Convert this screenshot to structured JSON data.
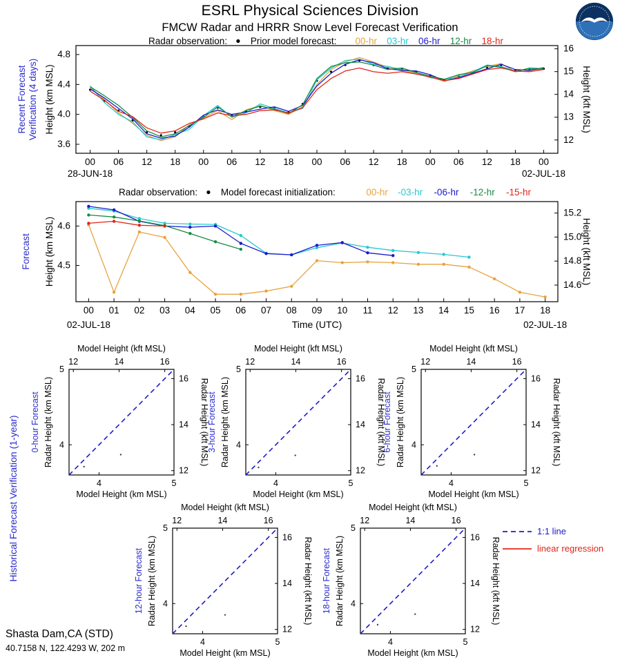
{
  "page": {
    "title": "ESRL Physical Sciences Division",
    "subtitle": "FMCW Radar and HRRR Snow Level Forecast Verification",
    "station": {
      "name": "Shasta Dam,CA (STD)",
      "coords": "40.7158 N, 122.4293 W, 202 m"
    },
    "logo": "noaa-logo"
  },
  "colors": {
    "radar": "#000000",
    "hr00": "#E8A33D",
    "hr03": "#25C8D0",
    "hr06": "#1A1ACD",
    "hr12": "#178A43",
    "hr15": "#E02418",
    "hr18": "#E02418",
    "section_label": "#2B2BD0",
    "one_to_one": "#1A1ACD",
    "regression": "#E02418"
  },
  "chart_data": [
    {
      "type": "line",
      "name": "recent_verification",
      "section_label_line1": "Recent Forecast",
      "section_label_line2": "Verification (4 days)",
      "legend": {
        "radar_label": "Radar observation:",
        "model_label": "Prior model forecast:",
        "items": [
          {
            "label": "00-hr",
            "color": "hr00"
          },
          {
            "label": "03-hr",
            "color": "hr03"
          },
          {
            "label": "06-hr",
            "color": "hr06"
          },
          {
            "label": "12-hr",
            "color": "hr12"
          },
          {
            "label": "18-hr",
            "color": "hr18"
          }
        ]
      },
      "ylabel_left": "Height (km MSL)",
      "ylabel_right": "Height (kft MSL)",
      "date_left": "28-JUN-18",
      "date_right": "02-JUL-18",
      "xlim": [
        -3,
        99
      ],
      "ylim": [
        3.48,
        4.92
      ],
      "y_left_ticks": [
        "3.6",
        "4.0",
        "4.4",
        "4.8"
      ],
      "y_right_ticks": [
        "12",
        "13",
        "14",
        "15",
        "16"
      ],
      "x_ticks": {
        "positions": [
          0,
          6,
          12,
          18,
          24,
          30,
          36,
          42,
          48,
          54,
          60,
          66,
          72,
          78,
          84,
          90,
          96
        ],
        "labels": [
          "00",
          "06",
          "12",
          "18",
          "00",
          "06",
          "12",
          "18",
          "00",
          "06",
          "12",
          "18",
          "00",
          "06",
          "12",
          "18",
          "00"
        ]
      },
      "x": [
        0,
        3,
        6,
        9,
        12,
        15,
        18,
        21,
        24,
        27,
        30,
        33,
        36,
        39,
        42,
        45,
        48,
        51,
        54,
        57,
        60,
        63,
        66,
        69,
        72,
        75,
        78,
        81,
        84,
        87,
        90,
        93,
        96
      ],
      "series": [
        {
          "name": "radar-observation",
          "color": "radar",
          "style": "dots",
          "values": [
            4.33,
            4.18,
            4.05,
            3.92,
            3.76,
            3.72,
            3.76,
            3.84,
            3.97,
            4.09,
            3.99,
            4.04,
            4.1,
            4.08,
            4.03,
            4.14,
            4.45,
            4.57,
            4.66,
            4.72,
            4.66,
            4.62,
            4.61,
            4.57,
            4.52,
            4.46,
            4.51,
            4.56,
            4.63,
            4.66,
            4.59,
            4.6,
            4.61
          ]
        },
        {
          "name": "00-hr",
          "color": "hr00",
          "style": "line",
          "values": [
            4.36,
            4.2,
            4.02,
            3.88,
            3.72,
            3.65,
            3.7,
            3.86,
            3.95,
            4.05,
            3.93,
            4.06,
            4.12,
            4.05,
            4.0,
            4.1,
            4.4,
            4.6,
            4.7,
            4.76,
            4.7,
            4.63,
            4.58,
            4.55,
            4.5,
            4.44,
            4.52,
            4.58,
            4.64,
            4.68,
            4.57,
            4.58,
            4.63
          ]
        },
        {
          "name": "03-hr",
          "color": "hr03",
          "style": "line",
          "values": [
            4.38,
            4.16,
            4.0,
            3.9,
            3.7,
            3.66,
            3.73,
            3.8,
            3.98,
            4.12,
            3.96,
            4.02,
            4.14,
            4.08,
            4.02,
            4.08,
            4.46,
            4.62,
            4.72,
            4.74,
            4.67,
            4.64,
            4.6,
            4.56,
            4.49,
            4.47,
            4.5,
            4.57,
            4.66,
            4.64,
            4.58,
            4.61,
            4.6
          ]
        },
        {
          "name": "06-hr",
          "color": "hr06",
          "style": "line",
          "values": [
            4.34,
            4.22,
            4.08,
            3.94,
            3.74,
            3.68,
            3.71,
            3.83,
            3.99,
            4.06,
            4.0,
            4.03,
            4.07,
            4.1,
            4.04,
            4.12,
            4.38,
            4.55,
            4.67,
            4.73,
            4.69,
            4.61,
            4.59,
            4.58,
            4.53,
            4.45,
            4.49,
            4.55,
            4.61,
            4.67,
            4.6,
            4.59,
            4.62
          ]
        },
        {
          "name": "12-hr",
          "color": "hr12",
          "style": "line",
          "values": [
            4.37,
            4.25,
            4.12,
            3.96,
            3.78,
            3.7,
            3.74,
            3.85,
            3.96,
            4.1,
            3.97,
            4.05,
            4.11,
            4.07,
            4.01,
            4.13,
            4.48,
            4.64,
            4.69,
            4.7,
            4.66,
            4.6,
            4.62,
            4.56,
            4.51,
            4.47,
            4.53,
            4.56,
            4.65,
            4.63,
            4.57,
            4.62,
            4.61
          ]
        },
        {
          "name": "18-hr",
          "color": "hr18",
          "style": "line",
          "values": [
            4.31,
            4.19,
            4.04,
            3.97,
            3.82,
            3.75,
            3.78,
            3.88,
            3.94,
            4.02,
            3.98,
            4.0,
            4.05,
            4.06,
            4.02,
            4.09,
            4.33,
            4.48,
            4.58,
            4.62,
            4.57,
            4.55,
            4.57,
            4.54,
            4.5,
            4.45,
            4.48,
            4.54,
            4.6,
            4.62,
            4.58,
            4.57,
            4.6
          ]
        }
      ]
    },
    {
      "type": "line",
      "name": "forecast",
      "section_label": "Forecast",
      "legend": {
        "radar_label": "Radar observation:",
        "model_label": "Model forecast initialization:",
        "items": [
          {
            "label": "00-hr",
            "color": "hr00"
          },
          {
            "label": "-03-hr",
            "color": "hr03"
          },
          {
            "label": "-06-hr",
            "color": "hr06"
          },
          {
            "label": "-12-hr",
            "color": "hr12"
          },
          {
            "label": "-15-hr",
            "color": "hr15"
          }
        ]
      },
      "ylabel_left": "Height (km MSL)",
      "ylabel_right": "Height (kft MSL)",
      "xlabel": "Time (UTC)",
      "date_left": "02-JUL-18",
      "date_right": "02-JUL-18",
      "xlim": [
        -0.5,
        18.5
      ],
      "ylim": [
        4.408,
        4.662
      ],
      "y_left_ticks": [
        "4.5",
        "4.6"
      ],
      "y_right_ticks": [
        "14.6",
        "14.8",
        "15.0",
        "15.2"
      ],
      "x_ticks": {
        "positions": [
          0,
          1,
          2,
          3,
          4,
          5,
          6,
          7,
          8,
          9,
          10,
          11,
          12,
          13,
          14,
          15,
          16,
          17,
          18
        ],
        "labels": [
          "00",
          "01",
          "02",
          "03",
          "04",
          "05",
          "06",
          "07",
          "08",
          "09",
          "10",
          "11",
          "12",
          "13",
          "14",
          "15",
          "16",
          "17",
          "18"
        ]
      },
      "series": [
        {
          "name": "radar-observation",
          "color": "radar",
          "style": "dots",
          "values": []
        },
        {
          "name": "00-hr",
          "color": "hr00",
          "style": "line-dots",
          "values": [
            4.603,
            4.432,
            4.585,
            4.571,
            4.482,
            4.427,
            4.427,
            4.435,
            4.447,
            4.512,
            4.507,
            4.509,
            4.507,
            4.503,
            4.503,
            4.496,
            4.466,
            4.432,
            4.42
          ]
        },
        {
          "name": "-03-hr",
          "color": "hr03",
          "style": "line-dots",
          "values": [
            4.645,
            4.638,
            4.619,
            4.607,
            4.605,
            4.604,
            4.576,
            4.531,
            4.527,
            4.545,
            4.557,
            4.546,
            4.538,
            4.533,
            4.528,
            4.521
          ]
        },
        {
          "name": "-06-hr",
          "color": "hr06",
          "style": "line-dots",
          "values": [
            4.65,
            4.641,
            4.612,
            4.6,
            4.597,
            4.6,
            4.556,
            4.53,
            4.527,
            4.551,
            4.558,
            4.532,
            4.525
          ]
        },
        {
          "name": "-12-hr",
          "color": "hr12",
          "style": "line-dots",
          "values": [
            4.628,
            4.623,
            4.613,
            4.601,
            4.581,
            4.56,
            4.541
          ]
        },
        {
          "name": "-15-hr",
          "color": "hr15",
          "style": "line-dots",
          "values": [
            4.607,
            4.612,
            4.602,
            4.6
          ]
        }
      ]
    },
    {
      "type": "scatter",
      "name": "historical_verification",
      "section_label": "Historical Forecast Verification (1-year)",
      "axes": {
        "top_label": "Model Height (kft MSL)",
        "bottom_label": "Model Height (km MSL)",
        "left_label": "Radar Height (km MSL)",
        "right_label": "Radar Height (kft MSL)",
        "km_ticks": [
          "4",
          "5"
        ],
        "kft_ticks": [
          "12",
          "14",
          "16"
        ],
        "lim": [
          3.6,
          5.0
        ]
      },
      "legend": {
        "one_to_one": "1:1 line",
        "regression": "linear regression"
      },
      "plots": [
        {
          "label": "0-hour Forecast",
          "points": [
            [
              3.8,
              3.71
            ],
            [
              4.29,
              3.87
            ]
          ]
        },
        {
          "label": "3-hour Forecast",
          "points": [
            [
              3.77,
              3.7
            ],
            [
              4.26,
              3.86
            ]
          ]
        },
        {
          "label": "6-hour Forecast",
          "points": [
            [
              3.81,
              3.72
            ],
            [
              4.31,
              3.87
            ]
          ]
        },
        {
          "label": "12-hour Forecast",
          "points": [
            [
              3.78,
              3.7
            ],
            [
              4.3,
              3.85
            ]
          ]
        },
        {
          "label": "18-hour Forecast",
          "points": [
            [
              3.83,
              3.72
            ],
            [
              4.33,
              3.86
            ]
          ]
        }
      ]
    }
  ]
}
